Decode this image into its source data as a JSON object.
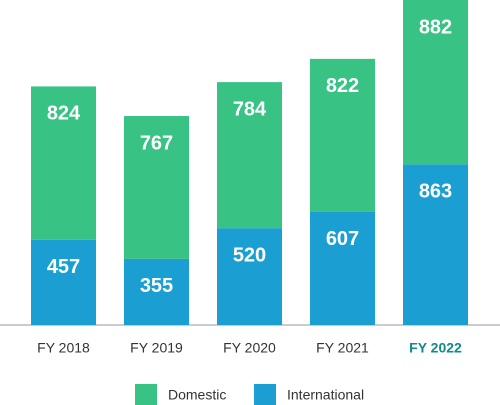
{
  "chart_data": {
    "type": "stacked_bar",
    "categories": [
      "FY 2018",
      "FY 2019",
      "FY 2020",
      "FY 2021",
      "FY 2022"
    ],
    "series": [
      {
        "name": "International",
        "color": "#1b9fd2",
        "values": [
          457,
          355,
          520,
          607,
          863
        ]
      },
      {
        "name": "Domestic",
        "color": "#38c283",
        "values": [
          824,
          767,
          784,
          822,
          882
        ]
      }
    ],
    "highlight_index": 4,
    "highlight_color": "#0e8b8a"
  }
}
